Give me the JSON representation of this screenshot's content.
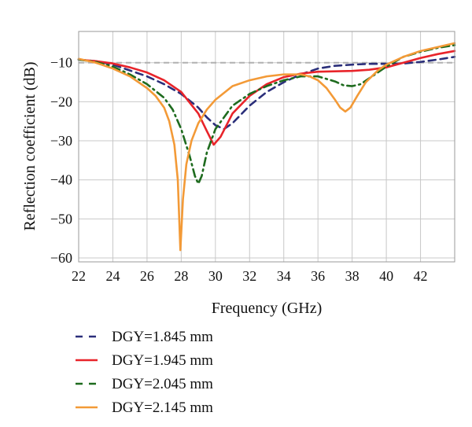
{
  "chart_data": {
    "type": "line",
    "title": "",
    "xlabel": "Frequency (GHz)",
    "ylabel": "Reflection coefficient (dB)",
    "xlim": [
      22,
      44
    ],
    "ylim": [
      -61,
      -2
    ],
    "xticks": [
      22,
      24,
      26,
      28,
      30,
      32,
      34,
      36,
      38,
      40,
      42
    ],
    "yticks": [
      -10,
      -20,
      -30,
      -40,
      -50,
      -60
    ],
    "grid": true,
    "legend_position": "below",
    "reference_line": {
      "y": -10,
      "color": "#b0b0b0",
      "style": "dashed"
    },
    "series": [
      {
        "name": "DGY=1.845 mm",
        "color": "#2b2f7a",
        "dash": "dashed",
        "x": [
          22,
          23,
          24,
          25,
          26,
          27,
          28,
          29,
          29.5,
          30,
          30.5,
          31,
          32,
          33,
          34,
          35,
          36,
          37,
          38,
          39,
          40,
          41,
          42,
          43,
          44
        ],
        "y": [
          -9.2,
          -9.6,
          -10.5,
          -12,
          -13.5,
          -15.5,
          -18,
          -21.5,
          -24,
          -26,
          -27,
          -25.5,
          -21,
          -17.5,
          -15,
          -13,
          -11.5,
          -10.8,
          -10.5,
          -10.3,
          -10.3,
          -10.2,
          -9.8,
          -9.2,
          -8.5
        ]
      },
      {
        "name": "DGY=1.945 mm",
        "color": "#e8242a",
        "dash": "solid",
        "x": [
          22,
          23,
          24,
          25,
          26,
          27,
          28,
          29,
          29.5,
          29.9,
          30.3,
          31,
          32,
          33,
          34,
          35,
          36,
          37,
          38,
          39,
          40,
          41,
          42,
          43,
          44
        ],
        "y": [
          -9.2,
          -9.6,
          -10.2,
          -11.2,
          -12.5,
          -14.5,
          -17.5,
          -23,
          -27.5,
          -31,
          -29,
          -23,
          -18.5,
          -15.5,
          -13.7,
          -12.8,
          -12.3,
          -12.2,
          -12.1,
          -11.8,
          -11.2,
          -10,
          -8.8,
          -7.8,
          -7
        ]
      },
      {
        "name": "DGY=2.045 mm",
        "color": "#1e6b1e",
        "dash": "dashdot",
        "x": [
          22,
          23,
          24,
          25,
          26,
          27,
          27.5,
          28,
          28.5,
          28.8,
          29,
          29.2,
          29.5,
          30,
          31,
          32,
          33,
          34,
          35,
          36,
          37,
          37.5,
          38,
          38.5,
          39,
          40,
          41,
          42,
          43,
          44
        ],
        "y": [
          -9.2,
          -9.8,
          -11,
          -13,
          -15.5,
          -19,
          -22,
          -27,
          -34,
          -39,
          -41,
          -39,
          -33,
          -27,
          -21,
          -18,
          -16,
          -14.5,
          -13.5,
          -13.5,
          -14.8,
          -15.8,
          -16,
          -15.5,
          -14,
          -11,
          -8.5,
          -7.2,
          -6.2,
          -5.5
        ]
      },
      {
        "name": "DGY=2.145 mm",
        "color": "#f39a37",
        "dash": "solid",
        "x": [
          22,
          23,
          24,
          25,
          26,
          26.5,
          27,
          27.3,
          27.6,
          27.8,
          27.95,
          28.1,
          28.3,
          28.6,
          29,
          29.5,
          30,
          31,
          32,
          33,
          34,
          35,
          35.5,
          36,
          36.5,
          37,
          37.3,
          37.6,
          37.9,
          38.3,
          38.8,
          39.5,
          40,
          41,
          42,
          43,
          44
        ],
        "y": [
          -9,
          -10,
          -11.5,
          -13.5,
          -16.5,
          -18.5,
          -21.5,
          -25,
          -31,
          -40,
          -58,
          -45,
          -36,
          -30,
          -25.5,
          -22,
          -19.5,
          -16,
          -14.5,
          -13.5,
          -13,
          -13,
          -13.5,
          -14.5,
          -16.5,
          -19.5,
          -21.5,
          -22.5,
          -21.5,
          -18.5,
          -15,
          -12,
          -10.5,
          -8.5,
          -7,
          -6,
          -5
        ]
      }
    ]
  }
}
